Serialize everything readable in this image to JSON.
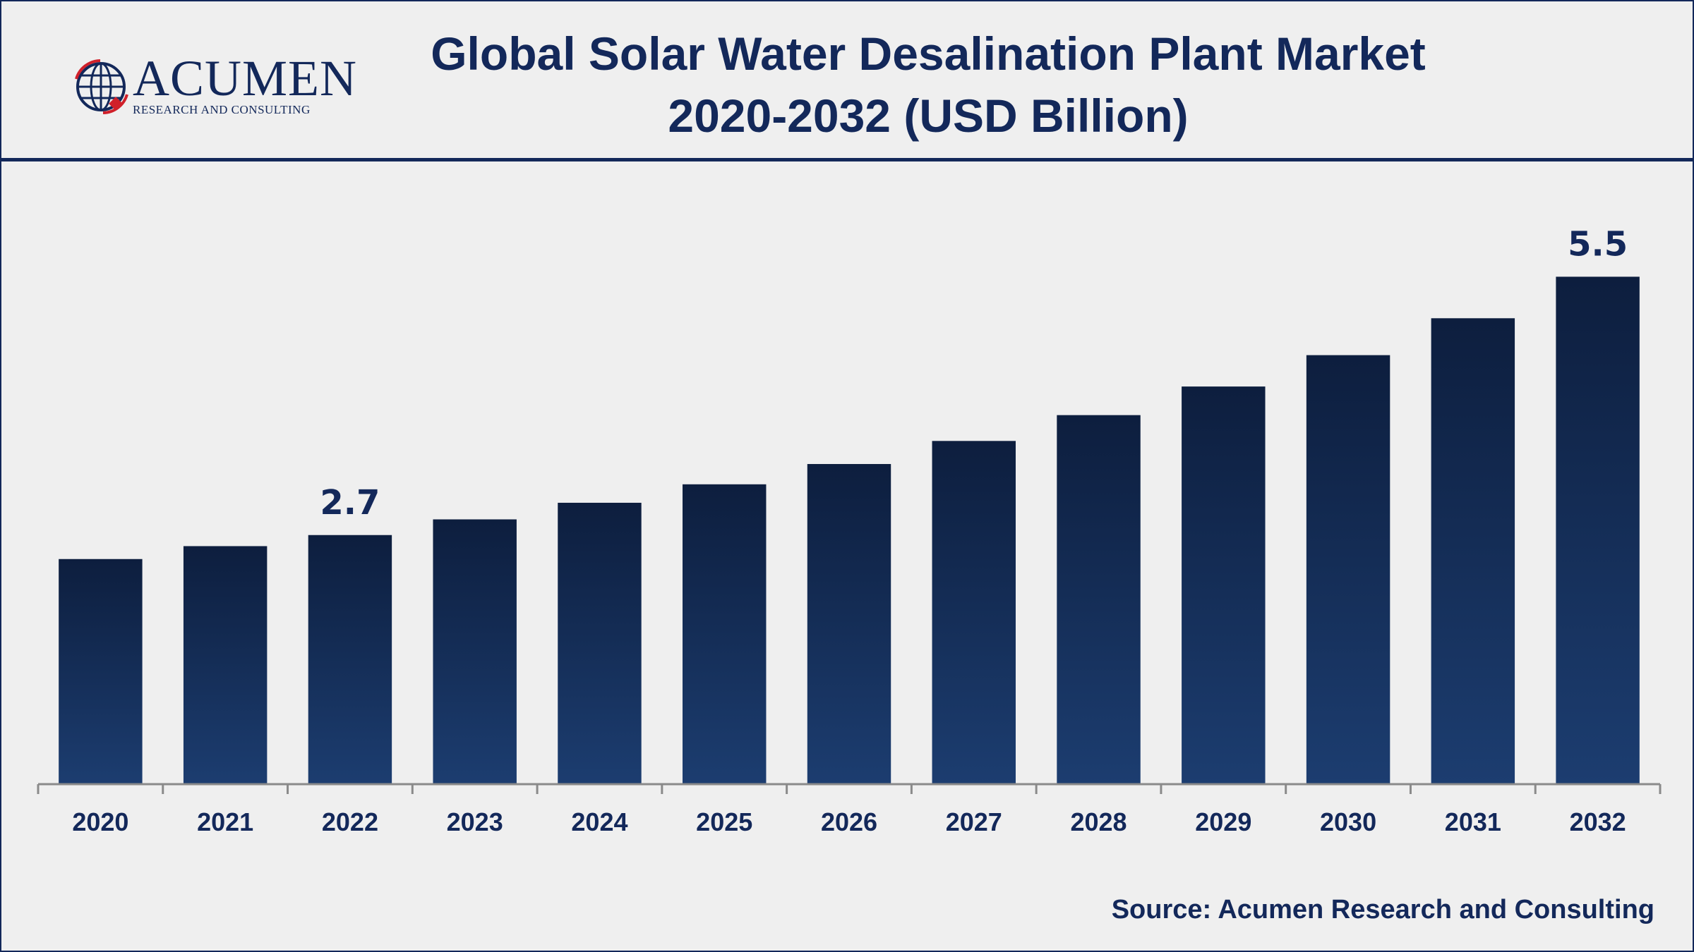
{
  "header": {
    "title_line1": "Global Solar Water Desalination Plant Market",
    "title_line2": "2020-2032 (USD Billion)"
  },
  "logo": {
    "wordmark": "ACUMEN",
    "tagline": "RESEARCH AND CONSULTING",
    "icon": "globe-icon"
  },
  "source": "Source: Acumen Research and Consulting",
  "colors": {
    "navy": "#13285a",
    "bar_top": "#0d1e3e",
    "bar_bottom": "#1c3d70",
    "logo_red": "#d0202a"
  },
  "chart_data": {
    "type": "bar",
    "title": "Global Solar Water Desalination Plant Market 2020-2032 (USD Billion)",
    "xlabel": "",
    "ylabel": "",
    "categories": [
      "2020",
      "2021",
      "2022",
      "2023",
      "2024",
      "2025",
      "2026",
      "2027",
      "2028",
      "2029",
      "2030",
      "2031",
      "2032"
    ],
    "values": [
      2.44,
      2.58,
      2.7,
      2.87,
      3.05,
      3.25,
      3.47,
      3.72,
      4.0,
      4.31,
      4.65,
      5.05,
      5.5
    ],
    "data_labels": [
      {
        "index": 2,
        "text": "2.7"
      },
      {
        "index": 12,
        "text": "5.5"
      }
    ],
    "ylim": [
      0,
      6
    ],
    "grid": false,
    "legend": "none"
  }
}
